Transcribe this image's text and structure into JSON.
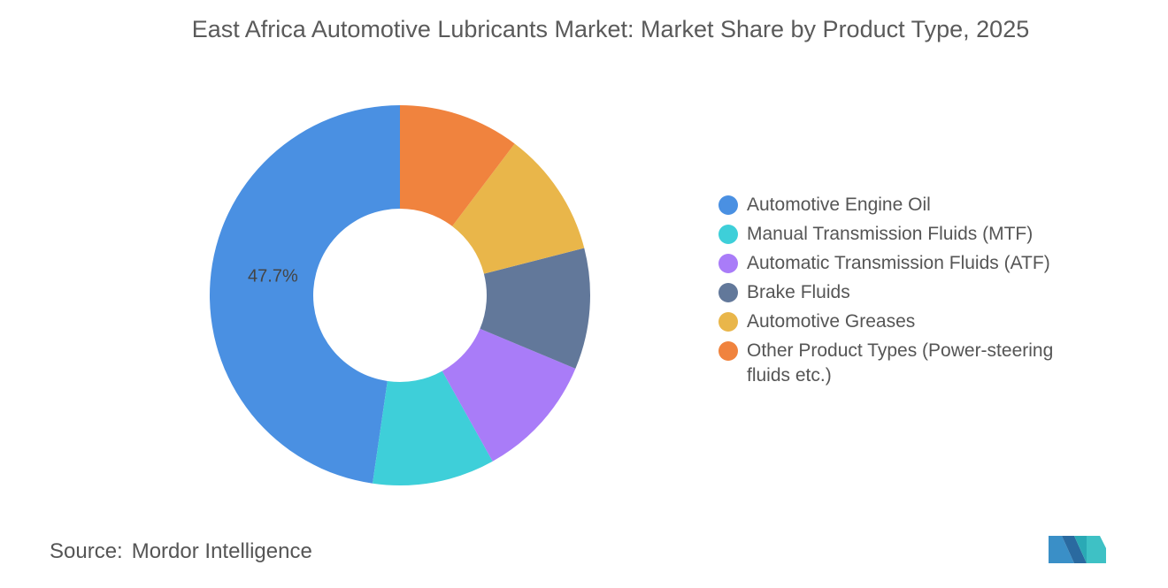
{
  "chart_data": {
    "type": "donut",
    "title": "East Africa Automotive Lubricants Market: Market Share by Product Type, 2025",
    "categories": [
      "Automotive Engine Oil",
      "Manual Transmission Fluids (MTF)",
      "Automatic Transmission Fluids (ATF)",
      "Brake Fluids",
      "Automotive Greases",
      "Other Product Types (Power-steering fluids etc.)"
    ],
    "values": [
      47.7,
      10.4,
      10.6,
      10.3,
      10.7,
      10.3
    ],
    "value_labels": [
      "47.7%",
      null,
      null,
      null,
      null,
      null
    ],
    "colors": [
      "#4a90e2",
      "#3ecfd9",
      "#a97cf8",
      "#62789a",
      "#e9b64a",
      "#f0833e"
    ],
    "legend": "right",
    "source_label": "Source:",
    "source": "Mordor Intelligence"
  }
}
